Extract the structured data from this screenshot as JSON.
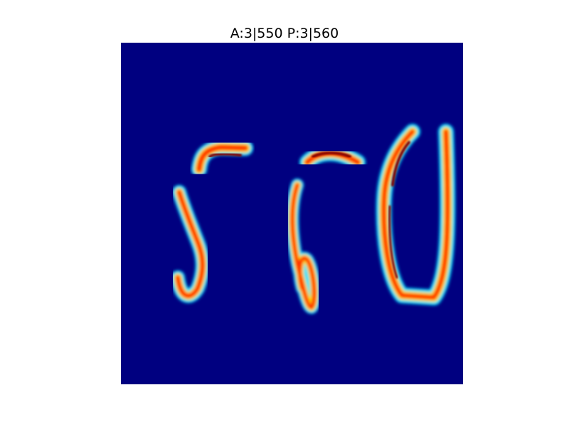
{
  "figure": {
    "title": "A:3|550 P:3|560"
  },
  "colors": {
    "background": "#000080",
    "stroke_outer": "#00ffff",
    "stroke_mid": "#ffff00",
    "stroke_core": "#ff0000",
    "stroke_peak": "#800000"
  },
  "colormap": "jet",
  "digits": [
    {
      "name": "digit-5",
      "glyph": "5"
    },
    {
      "name": "digit-6",
      "glyph": "6"
    },
    {
      "name": "digit-0",
      "glyph": "0"
    }
  ]
}
